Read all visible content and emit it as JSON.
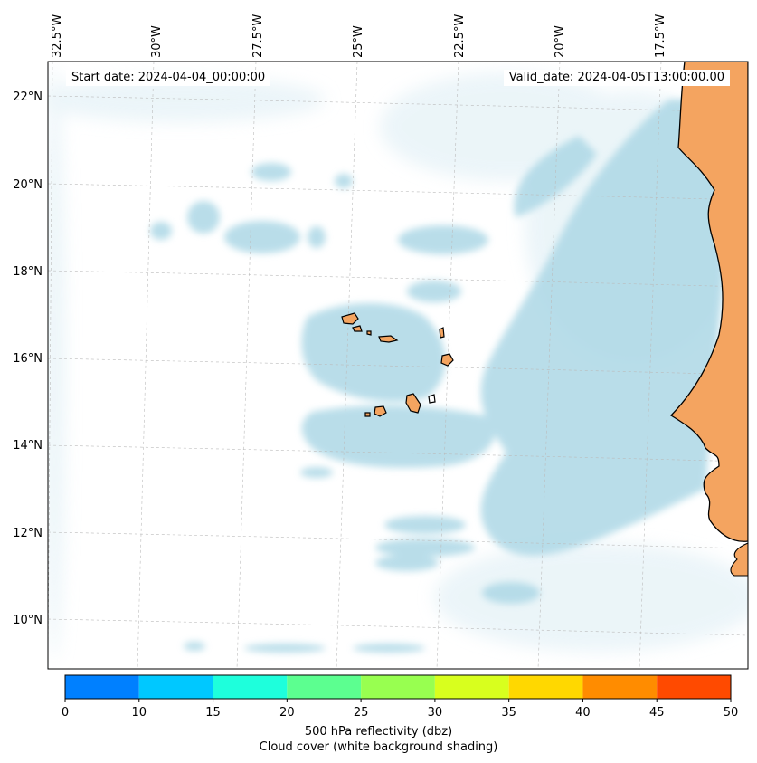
{
  "header": {
    "start_date": "Start date: 2024-04-04_00:00:00",
    "valid_date": "Valid_date: 2024-04-05T13:00:00.00"
  },
  "axes": {
    "lon_labels": [
      "32.5°W",
      "30°W",
      "27.5°W",
      "25°W",
      "22.5°W",
      "20°W",
      "17.5°W"
    ],
    "lat_labels": [
      "22°N",
      "20°N",
      "18°N",
      "16°N",
      "14°N",
      "12°N",
      "10°N"
    ]
  },
  "colorbar": {
    "ticks": [
      "0",
      "10",
      "15",
      "20",
      "25",
      "30",
      "35",
      "40",
      "45",
      "50"
    ],
    "colors": [
      "#0080ff",
      "#00c8ff",
      "#1effdc",
      "#5cff90",
      "#98ff50",
      "#d8ff1e",
      "#ffd800",
      "#ff8c00",
      "#ff4a00"
    ],
    "label": "500 hPa reflectivity (dbz)",
    "sublabel": "Cloud cover (white background shading)"
  },
  "colors": {
    "land": "#f4a460",
    "cloud": "#add8e6",
    "cloud_light": "#dcedf4",
    "grid": "#bbbbbb"
  }
}
